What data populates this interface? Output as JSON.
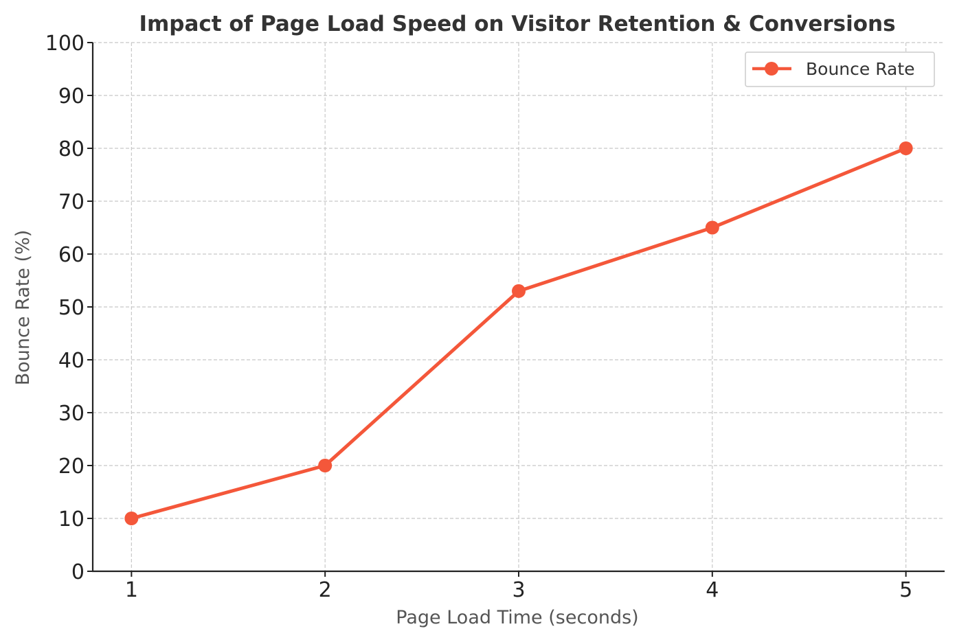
{
  "chart_data": {
    "type": "line",
    "title": "Impact of Page Load Speed on Visitor Retention & Conversions",
    "xlabel": "Page Load Time (seconds)",
    "ylabel": "Bounce Rate (%)",
    "x": [
      1,
      2,
      3,
      4,
      5
    ],
    "xticks": [
      "1",
      "2",
      "3",
      "4",
      "5"
    ],
    "yticks": [
      "0",
      "10",
      "20",
      "30",
      "40",
      "50",
      "60",
      "70",
      "80",
      "90",
      "100"
    ],
    "ylim": [
      0,
      100
    ],
    "xlim": [
      0.8,
      5.2
    ],
    "grid": true,
    "legend_position": "top-right",
    "series": [
      {
        "name": "Bounce Rate",
        "color": "#f4573a",
        "values": [
          10,
          20,
          53,
          65,
          80
        ]
      }
    ]
  }
}
